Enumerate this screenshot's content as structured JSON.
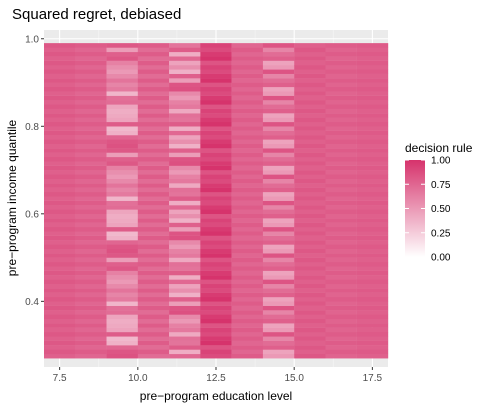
{
  "chart_data": {
    "type": "heatmap",
    "title": "Squared regret, debiased",
    "xlabel": "pre−program education level",
    "ylabel": "pre−program income quantile",
    "xlim": [
      7.0,
      18.0
    ],
    "ylim": [
      0.25,
      1.02
    ],
    "x_ticks": [
      7.5,
      10.0,
      12.5,
      15.0,
      17.5
    ],
    "x_tick_labels": [
      "7.5",
      "10.0",
      "12.5",
      "15.0",
      "17.5"
    ],
    "y_ticks": [
      0.4,
      0.6,
      0.8,
      1.0
    ],
    "y_tick_labels": [
      "0.4",
      "0.6",
      "0.8",
      "1.0"
    ],
    "x_bins": [
      7,
      8,
      9,
      10,
      11,
      12,
      13,
      14,
      15,
      16,
      17,
      18
    ],
    "y_range": [
      0.27,
      0.99
    ],
    "y_rows": 72,
    "values": {
      "x7": [
        0.78,
        0.82
      ],
      "x8": [
        0.8,
        0.75
      ],
      "x9": [
        0.45,
        0.65,
        0.82,
        0.38,
        0.72,
        0.5,
        0.85,
        0.42,
        0.6,
        0.78,
        0.35,
        0.7,
        0.55,
        0.83,
        0.4,
        0.68,
        0.48,
        0.8,
        0.36,
        0.62,
        0.75,
        0.44,
        0.58,
        0.82
      ],
      "x10": [
        0.8,
        0.72
      ],
      "x11": [
        0.5,
        0.78,
        0.4,
        0.66,
        0.84,
        0.45,
        0.7,
        0.58,
        0.38,
        0.8,
        0.62,
        0.48,
        0.74,
        0.42,
        0.86,
        0.55,
        0.68
      ],
      "x12": [
        0.88,
        1.0,
        0.92,
        0.96,
        0.84
      ],
      "x13": [
        0.8,
        0.75
      ],
      "x14": [
        0.72,
        0.6,
        0.84,
        0.5,
        0.45,
        0.78
      ],
      "x15": [
        0.82,
        0.78
      ],
      "x16": [
        0.8,
        0.76
      ],
      "x17": [
        0.78,
        0.81
      ]
    },
    "color_low": "#ffffff",
    "color_high": "#d6336c",
    "panel_bg": "#ebebeb",
    "legend": {
      "title": "decision rule",
      "placement": "right",
      "breaks": [
        0.0,
        0.25,
        0.5,
        0.75,
        1.0
      ],
      "labels": [
        "0.00",
        "0.25",
        "0.50",
        "0.75",
        "1.00"
      ]
    }
  }
}
